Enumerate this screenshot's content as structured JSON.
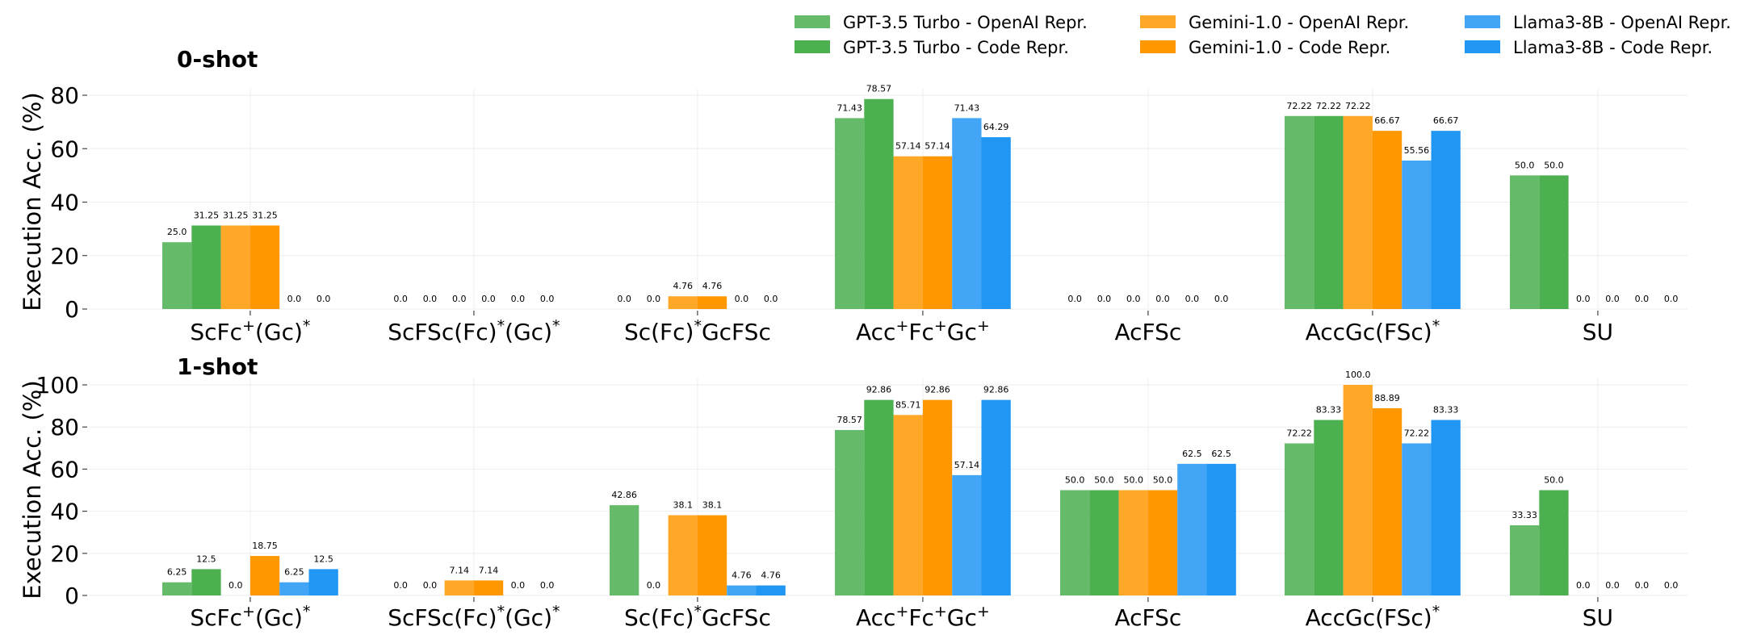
{
  "legend": [
    {
      "name": "GPT-3.5 Turbo - OpenAI Repr.",
      "color": "#66bb6a"
    },
    {
      "name": "GPT-3.5 Turbo - Code Repr.",
      "color": "#4caf50"
    },
    {
      "name": "Gemini-1.0 - OpenAI Repr.",
      "color": "#ffa726"
    },
    {
      "name": "Gemini-1.0 - Code Repr.",
      "color": "#ff9800"
    },
    {
      "name": "Llama3-8B - OpenAI Repr.",
      "color": "#42a5f5"
    },
    {
      "name": "Llama3-8B - Code Repr.",
      "color": "#2196f3"
    }
  ],
  "chart_data": [
    {
      "type": "bar",
      "title": "0-shot",
      "ylabel": "Execution Acc. (%)",
      "ylim": [
        0,
        80
      ],
      "yticks": [
        "0",
        "20",
        "40",
        "60",
        "80"
      ],
      "grid": true,
      "legend_placement": "top-right",
      "categories": [
        {
          "base": "ScFc",
          "parts": [
            [
              "ScFc",
              false
            ],
            [
              "+",
              true
            ],
            [
              "(Gc)",
              false
            ],
            [
              "*",
              true
            ]
          ]
        },
        {
          "base": "ScFSc(Fc)(Gc)",
          "parts": [
            [
              "ScFSc(Fc)",
              false
            ],
            [
              "*",
              true
            ],
            [
              "(Gc)",
              false
            ],
            [
              "*",
              true
            ]
          ]
        },
        {
          "base": "Sc(Fc)GcFSc",
          "parts": [
            [
              "Sc(Fc)",
              false
            ],
            [
              "*",
              true
            ],
            [
              "GcFSc",
              false
            ]
          ]
        },
        {
          "base": "AccFcGc",
          "parts": [
            [
              "Acc",
              false
            ],
            [
              "+",
              true
            ],
            [
              "Fc",
              false
            ],
            [
              "+",
              true
            ],
            [
              "Gc",
              false
            ],
            [
              "+",
              true
            ]
          ]
        },
        {
          "base": "AcFSc",
          "parts": [
            [
              "AcFSc",
              false
            ]
          ]
        },
        {
          "base": "AccGc(FSc)",
          "parts": [
            [
              "AccGc(FSc)",
              false
            ],
            [
              "*",
              true
            ]
          ]
        },
        {
          "base": "SU",
          "parts": [
            [
              "SU",
              false
            ]
          ]
        }
      ],
      "series": [
        {
          "name": "GPT-3.5 Turbo - OpenAI Repr.",
          "values": [
            25.0,
            0.0,
            0.0,
            71.43,
            0.0,
            72.22,
            50.0
          ],
          "labels": [
            "25.0",
            "0.0",
            "0.0",
            "71.43",
            "0.0",
            "72.22",
            "50.0"
          ]
        },
        {
          "name": "GPT-3.5 Turbo - Code Repr.",
          "values": [
            31.25,
            0.0,
            0.0,
            78.57,
            0.0,
            72.22,
            50.0
          ],
          "labels": [
            "31.25",
            "0.0",
            "0.0",
            "78.57",
            "0.0",
            "72.22",
            "50.0"
          ]
        },
        {
          "name": "Gemini-1.0 - OpenAI Repr.",
          "values": [
            31.25,
            0.0,
            4.76,
            57.14,
            0.0,
            72.22,
            0.0
          ],
          "labels": [
            "31.25",
            "0.0",
            "4.76",
            "57.14",
            "0.0",
            "72.22",
            "0.0"
          ]
        },
        {
          "name": "Gemini-1.0 - Code Repr.",
          "values": [
            31.25,
            0.0,
            4.76,
            57.14,
            0.0,
            66.67,
            0.0
          ],
          "labels": [
            "31.25",
            "0.0",
            "4.76",
            "57.14",
            "0.0",
            "66.67",
            "0.0"
          ]
        },
        {
          "name": "Llama3-8B - OpenAI Repr.",
          "values": [
            0.0,
            0.0,
            0.0,
            71.43,
            0.0,
            55.56,
            0.0
          ],
          "labels": [
            "0.0",
            "0.0",
            "0.0",
            "71.43",
            "0.0",
            "55.56",
            "0.0"
          ]
        },
        {
          "name": "Llama3-8B - Code Repr.",
          "values": [
            0.0,
            0.0,
            0.0,
            64.29,
            0.0,
            66.67,
            0.0
          ],
          "labels": [
            "0.0",
            "0.0",
            "0.0",
            "64.29",
            "0.0",
            "66.67",
            "0.0"
          ]
        }
      ]
    },
    {
      "type": "bar",
      "title": "1-shot",
      "ylabel": "Execution Acc. (%)",
      "ylim": [
        0,
        100
      ],
      "yticks": [
        "0",
        "20",
        "40",
        "60",
        "80",
        "100"
      ],
      "grid": true,
      "categories": [
        {
          "base": "ScFc",
          "parts": [
            [
              "ScFc",
              false
            ],
            [
              "+",
              true
            ],
            [
              "(Gc)",
              false
            ],
            [
              "*",
              true
            ]
          ]
        },
        {
          "base": "ScFSc(Fc)(Gc)",
          "parts": [
            [
              "ScFSc(Fc)",
              false
            ],
            [
              "*",
              true
            ],
            [
              "(Gc)",
              false
            ],
            [
              "*",
              true
            ]
          ]
        },
        {
          "base": "Sc(Fc)GcFSc",
          "parts": [
            [
              "Sc(Fc)",
              false
            ],
            [
              "*",
              true
            ],
            [
              "GcFSc",
              false
            ]
          ]
        },
        {
          "base": "AccFcGc",
          "parts": [
            [
              "Acc",
              false
            ],
            [
              "+",
              true
            ],
            [
              "Fc",
              false
            ],
            [
              "+",
              true
            ],
            [
              "Gc",
              false
            ],
            [
              "+",
              true
            ]
          ]
        },
        {
          "base": "AcFSc",
          "parts": [
            [
              "AcFSc",
              false
            ]
          ]
        },
        {
          "base": "AccGc(FSc)",
          "parts": [
            [
              "AccGc(FSc)",
              false
            ],
            [
              "*",
              true
            ]
          ]
        },
        {
          "base": "SU",
          "parts": [
            [
              "SU",
              false
            ]
          ]
        }
      ],
      "series": [
        {
          "name": "GPT-3.5 Turbo - OpenAI Repr.",
          "values": [
            6.25,
            0.0,
            42.86,
            78.57,
            50.0,
            72.22,
            33.33
          ],
          "labels": [
            "6.25",
            "0.0",
            "42.86",
            "78.57",
            "50.0",
            "72.22",
            "33.33"
          ]
        },
        {
          "name": "GPT-3.5 Turbo - Code Repr.",
          "values": [
            12.5,
            0.0,
            0.0,
            92.86,
            50.0,
            83.33,
            50.0
          ],
          "labels": [
            "12.5",
            "0.0",
            "0.0",
            "92.86",
            "50.0",
            "83.33",
            "50.0"
          ]
        },
        {
          "name": "Gemini-1.0 - OpenAI Repr.",
          "values": [
            0.0,
            7.14,
            38.1,
            85.71,
            50.0,
            100.0,
            0.0
          ],
          "labels": [
            "0.0",
            "7.14",
            "38.1",
            "85.71",
            "50.0",
            "100.0",
            "0.0"
          ]
        },
        {
          "name": "Gemini-1.0 - Code Repr.",
          "values": [
            18.75,
            7.14,
            38.1,
            92.86,
            50.0,
            88.89,
            0.0
          ],
          "labels": [
            "18.75",
            "7.14",
            "38.1",
            "92.86",
            "50.0",
            "88.89",
            "0.0"
          ]
        },
        {
          "name": "Llama3-8B - OpenAI Repr.",
          "values": [
            6.25,
            0.0,
            4.76,
            57.14,
            62.5,
            72.22,
            0.0
          ],
          "labels": [
            "6.25",
            "0.0",
            "4.76",
            "57.14",
            "62.5",
            "72.22",
            "0.0"
          ]
        },
        {
          "name": "Llama3-8B - Code Repr.",
          "values": [
            12.5,
            0.0,
            4.76,
            92.86,
            62.5,
            83.33,
            0.0
          ],
          "labels": [
            "12.5",
            "0.0",
            "4.76",
            "92.86",
            "62.5",
            "83.33",
            "0.0"
          ]
        }
      ]
    }
  ]
}
